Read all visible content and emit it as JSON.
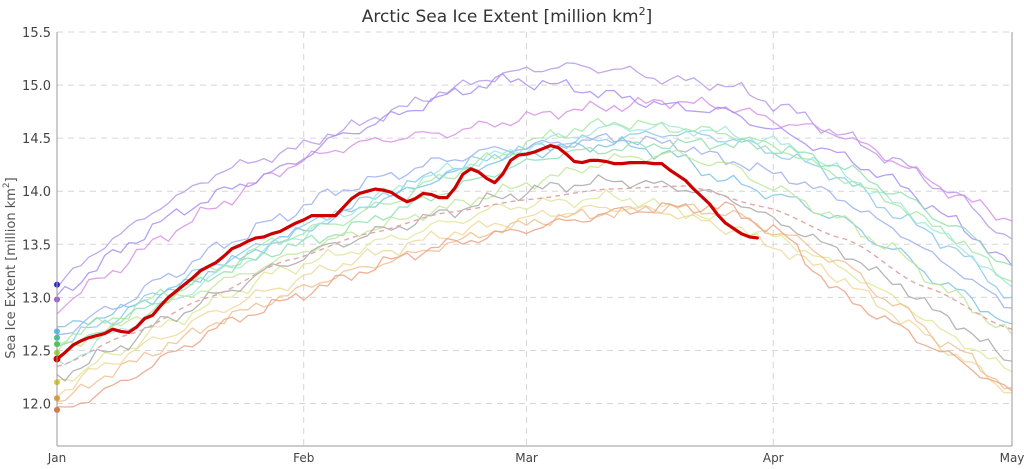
{
  "chart_data": {
    "type": "line",
    "title": "Arctic Sea Ice Extent [million km",
    "title_superscript": "2",
    "title_suffix": "]",
    "ylabel": "Sea Ice Extent [million km",
    "ylabel_superscript": "2",
    "ylabel_suffix": "]",
    "xlabel": "",
    "x_unit": "day of year",
    "xlim": [
      1,
      121
    ],
    "ylim": [
      11.6,
      15.5
    ],
    "y_ticks": [
      "12.0",
      "12.5",
      "13.0",
      "13.5",
      "14.0",
      "14.5",
      "15.0",
      "15.5"
    ],
    "y_tick_values": [
      12.0,
      12.5,
      13.0,
      13.5,
      14.0,
      14.5,
      15.0,
      15.5
    ],
    "x_ticks": [
      "Jan",
      "Feb",
      "Mar",
      "Apr",
      "May"
    ],
    "x_tick_values": [
      1,
      32,
      60,
      91,
      121
    ],
    "grid": true,
    "series": [
      {
        "color": "#cc0000",
        "highlight": true,
        "x": [
          1,
          2,
          3,
          4,
          5,
          6,
          7,
          8,
          9,
          10,
          11,
          12,
          13,
          14,
          15,
          16,
          17,
          18,
          19,
          20,
          21,
          22,
          23,
          24,
          25,
          26,
          27,
          28,
          29,
          30,
          31,
          32,
          33,
          34,
          35,
          36,
          37,
          38,
          39,
          40,
          41,
          42,
          43,
          44,
          45,
          46,
          47,
          48,
          49,
          50,
          51,
          52,
          53,
          54,
          55,
          56,
          57,
          58,
          59,
          60,
          61,
          62,
          63,
          64,
          65,
          66,
          67,
          68,
          69,
          70,
          71,
          72,
          73,
          74,
          75,
          76,
          77,
          78,
          79,
          80,
          81,
          82,
          83,
          84,
          85,
          86,
          87,
          88,
          89
        ],
        "y": [
          12.42,
          12.48,
          12.55,
          12.59,
          12.62,
          12.64,
          12.66,
          12.7,
          12.68,
          12.67,
          12.72,
          12.8,
          12.83,
          12.92,
          13.0,
          13.06,
          13.12,
          13.18,
          13.25,
          13.29,
          13.33,
          13.39,
          13.46,
          13.49,
          13.53,
          13.56,
          13.57,
          13.6,
          13.62,
          13.66,
          13.7,
          13.73,
          13.77,
          13.77,
          13.77,
          13.77,
          13.85,
          13.93,
          13.98,
          14.0,
          14.02,
          14.01,
          13.99,
          13.94,
          13.9,
          13.93,
          13.98,
          13.97,
          13.94,
          13.94,
          14.03,
          14.16,
          14.21,
          14.18,
          14.12,
          14.08,
          14.16,
          14.29,
          14.34,
          14.35,
          14.37,
          14.4,
          14.43,
          14.41,
          14.35,
          14.28,
          14.27,
          14.29,
          14.29,
          14.28,
          14.26,
          14.26,
          14.27,
          14.27,
          14.27,
          14.26,
          14.26,
          14.2,
          14.15,
          14.1,
          14.02,
          13.95,
          13.88,
          13.78,
          13.7,
          13.65,
          13.6,
          13.57,
          13.56
        ]
      },
      {
        "color": "#d991e8",
        "x": [
          1,
          8,
          15,
          22,
          29,
          36,
          43,
          50,
          57,
          64,
          71,
          78,
          85,
          92,
          99,
          106,
          113,
          121
        ],
        "y": [
          12.9,
          13.25,
          13.6,
          13.9,
          14.2,
          14.4,
          14.5,
          14.55,
          14.65,
          14.75,
          14.8,
          14.85,
          14.8,
          14.65,
          14.55,
          14.3,
          14.0,
          13.72
        ]
      },
      {
        "color": "#b69ae8",
        "x": [
          1,
          8,
          15,
          22,
          29,
          36,
          43,
          50,
          57,
          64,
          71,
          78,
          85,
          92,
          99,
          106,
          113,
          121
        ],
        "y": [
          13.12,
          13.55,
          13.9,
          14.2,
          14.35,
          14.55,
          14.75,
          14.95,
          15.1,
          15.18,
          15.15,
          15.05,
          15.0,
          14.8,
          14.55,
          14.3,
          14.0,
          13.55
        ]
      },
      {
        "color": "#a88ff0",
        "x": [
          1,
          8,
          15,
          22,
          29,
          36,
          43,
          50,
          57,
          64,
          71,
          78,
          85,
          92,
          99,
          106,
          113,
          121
        ],
        "y": [
          13.0,
          13.4,
          13.75,
          14.0,
          14.2,
          14.5,
          14.7,
          14.9,
          15.05,
          15.0,
          14.9,
          14.8,
          14.75,
          14.55,
          14.35,
          14.1,
          13.75,
          13.3
        ]
      },
      {
        "color": "#9db0ee",
        "x": [
          1,
          8,
          15,
          22,
          29,
          36,
          43,
          50,
          57,
          64,
          71,
          78,
          85,
          92,
          99,
          106,
          113,
          121
        ],
        "y": [
          12.65,
          12.9,
          13.2,
          13.5,
          13.75,
          14.0,
          14.15,
          14.3,
          14.4,
          14.45,
          14.5,
          14.45,
          14.3,
          14.15,
          13.95,
          13.65,
          13.3,
          12.9
        ]
      },
      {
        "color": "#8cc8ee",
        "x": [
          1,
          8,
          15,
          22,
          29,
          36,
          43,
          50,
          57,
          64,
          71,
          78,
          85,
          92,
          99,
          106,
          113,
          121
        ],
        "y": [
          12.55,
          12.8,
          13.1,
          13.35,
          13.55,
          13.8,
          14.0,
          14.2,
          14.35,
          14.45,
          14.5,
          14.55,
          14.5,
          14.35,
          14.15,
          13.8,
          13.5,
          13.0
        ]
      },
      {
        "color": "#7ec4e8",
        "x": [
          1,
          8,
          15,
          22,
          29,
          36,
          43,
          50,
          57,
          64,
          71,
          78,
          85,
          92,
          99,
          106,
          113,
          121
        ],
        "y": [
          12.7,
          12.85,
          13.05,
          13.3,
          13.55,
          13.75,
          13.95,
          14.15,
          14.3,
          14.4,
          14.45,
          14.35,
          14.1,
          13.95,
          13.75,
          13.45,
          13.1,
          12.75
        ]
      },
      {
        "color": "#9fe8e0",
        "x": [
          1,
          8,
          15,
          22,
          29,
          36,
          43,
          50,
          57,
          64,
          71,
          78,
          85,
          92,
          99,
          106,
          113,
          121
        ],
        "y": [
          12.35,
          12.65,
          12.95,
          13.25,
          13.5,
          13.75,
          14.0,
          14.2,
          14.35,
          14.5,
          14.6,
          14.6,
          14.55,
          14.45,
          14.2,
          13.9,
          13.55,
          13.1
        ]
      },
      {
        "color": "#a6e8a6",
        "x": [
          1,
          8,
          15,
          22,
          29,
          36,
          43,
          50,
          57,
          64,
          71,
          78,
          85,
          92,
          99,
          106,
          113,
          121
        ],
        "y": [
          12.6,
          12.8,
          13.05,
          13.3,
          13.55,
          13.7,
          13.9,
          14.15,
          14.35,
          14.55,
          14.65,
          14.6,
          14.55,
          14.4,
          14.15,
          13.9,
          13.6,
          13.15
        ]
      },
      {
        "color": "#8fe0b0",
        "x": [
          1,
          8,
          15,
          22,
          29,
          36,
          43,
          50,
          57,
          64,
          71,
          78,
          85,
          92,
          99,
          106,
          113,
          121
        ],
        "y": [
          12.45,
          12.75,
          13.0,
          13.25,
          13.45,
          13.6,
          13.8,
          14.0,
          14.2,
          14.35,
          14.4,
          14.45,
          14.45,
          14.4,
          14.25,
          14.0,
          13.7,
          13.3
        ]
      },
      {
        "color": "#bfe89a",
        "x": [
          1,
          8,
          15,
          22,
          29,
          36,
          43,
          50,
          57,
          64,
          71,
          78,
          85,
          92,
          99,
          106,
          113,
          121
        ],
        "y": [
          12.5,
          12.7,
          12.95,
          13.15,
          13.35,
          13.55,
          13.7,
          13.85,
          14.0,
          14.15,
          14.3,
          14.35,
          14.25,
          14.0,
          13.75,
          13.45,
          13.05,
          12.65
        ]
      },
      {
        "color": "#dfe89a",
        "x": [
          1,
          8,
          15,
          22,
          29,
          36,
          43,
          50,
          57,
          64,
          71,
          78,
          85,
          92,
          99,
          106,
          113,
          121
        ],
        "y": [
          12.2,
          12.45,
          12.75,
          13.0,
          13.25,
          13.4,
          13.55,
          13.7,
          13.85,
          13.9,
          13.95,
          13.85,
          13.7,
          13.55,
          13.3,
          13.0,
          12.65,
          12.3
        ]
      },
      {
        "color": "#efd89a",
        "x": [
          1,
          8,
          15,
          22,
          29,
          36,
          43,
          50,
          57,
          64,
          71,
          78,
          85,
          92,
          99,
          106,
          113,
          121
        ],
        "y": [
          12.1,
          12.4,
          12.65,
          12.9,
          13.1,
          13.3,
          13.45,
          13.6,
          13.7,
          13.8,
          13.85,
          13.8,
          13.65,
          13.45,
          13.2,
          12.85,
          12.5,
          12.1
        ]
      },
      {
        "color": "#f1be92",
        "x": [
          1,
          8,
          15,
          22,
          29,
          36,
          43,
          50,
          57,
          64,
          71,
          78,
          85,
          92,
          99,
          106,
          113,
          121
        ],
        "y": [
          12.0,
          12.3,
          12.55,
          12.8,
          13.0,
          13.2,
          13.35,
          13.5,
          13.65,
          13.75,
          13.8,
          13.85,
          13.8,
          13.6,
          13.35,
          12.95,
          12.55,
          12.15
        ]
      },
      {
        "color": "#eba385",
        "x": [
          1,
          8,
          15,
          22,
          29,
          36,
          43,
          50,
          57,
          64,
          71,
          78,
          85,
          92,
          99,
          106,
          113,
          121
        ],
        "y": [
          11.92,
          12.15,
          12.45,
          12.75,
          12.95,
          13.15,
          13.35,
          13.5,
          13.6,
          13.7,
          13.8,
          13.85,
          13.85,
          13.6,
          13.05,
          12.75,
          12.45,
          12.12
        ]
      },
      {
        "color": "#a9a9a9",
        "x": [
          1,
          8,
          15,
          22,
          29,
          36,
          43,
          50,
          57,
          64,
          71,
          78,
          85,
          92,
          99,
          106,
          113,
          121
        ],
        "y": [
          12.25,
          12.5,
          12.8,
          13.05,
          13.3,
          13.5,
          13.65,
          13.8,
          13.95,
          14.05,
          14.1,
          14.05,
          13.95,
          13.7,
          13.45,
          13.15,
          12.8,
          12.4
        ]
      }
    ],
    "reference_line": {
      "style": "dashed",
      "color": "#e2a8a8",
      "x": [
        1,
        10,
        20,
        30,
        40,
        50,
        60,
        70,
        80,
        90,
        100,
        110,
        121
      ],
      "y": [
        12.35,
        12.65,
        13.0,
        13.35,
        13.6,
        13.8,
        13.92,
        14.02,
        14.05,
        13.85,
        13.55,
        13.1,
        12.7
      ]
    },
    "start_markers": [
      {
        "color": "#2a2ad0",
        "y": 13.12
      },
      {
        "color": "#a05be0",
        "y": 12.98
      },
      {
        "color": "#4cc0e8",
        "y": 12.68
      },
      {
        "color": "#38c890",
        "y": 12.62
      },
      {
        "color": "#3ad04a",
        "y": 12.56
      },
      {
        "color": "#a0d838",
        "y": 12.48
      },
      {
        "color": "#e0c830",
        "y": 12.2
      },
      {
        "color": "#e89a30",
        "y": 12.05
      },
      {
        "color": "#e07030",
        "y": 11.94
      }
    ]
  }
}
